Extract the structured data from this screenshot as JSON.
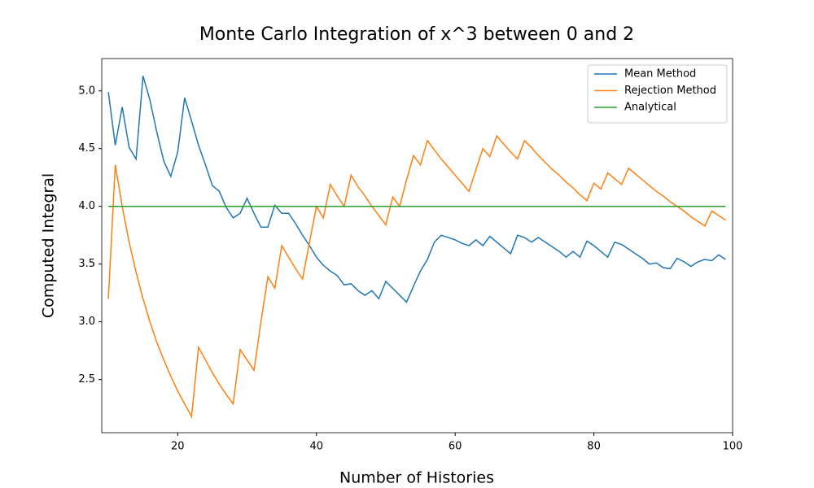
{
  "chart_data": {
    "type": "line",
    "title": "Monte Carlo Integration of x^3 between 0 and 2",
    "x_label": "Number of Histories",
    "y_label": "Computed Integral",
    "x": [
      10,
      11,
      12,
      13,
      14,
      15,
      16,
      17,
      18,
      19,
      20,
      21,
      22,
      23,
      24,
      25,
      26,
      27,
      28,
      29,
      30,
      31,
      32,
      33,
      34,
      35,
      36,
      37,
      38,
      39,
      40,
      41,
      42,
      43,
      44,
      45,
      46,
      47,
      48,
      49,
      50,
      51,
      52,
      53,
      54,
      55,
      56,
      57,
      58,
      59,
      60,
      61,
      62,
      63,
      64,
      65,
      66,
      67,
      68,
      69,
      70,
      71,
      72,
      73,
      74,
      75,
      76,
      77,
      78,
      79,
      80,
      81,
      82,
      83,
      84,
      85,
      86,
      87,
      88,
      89,
      90,
      91,
      92,
      93,
      94,
      95,
      96,
      97,
      98,
      99
    ],
    "series": [
      {
        "name": "Mean Method",
        "color": "#1f77b4",
        "values": [
          4.99,
          4.53,
          4.86,
          4.51,
          4.41,
          5.13,
          4.92,
          4.64,
          4.39,
          4.26,
          4.47,
          4.94,
          4.74,
          4.53,
          4.36,
          4.18,
          4.13,
          3.99,
          3.9,
          3.94,
          4.07,
          3.94,
          3.82,
          3.82,
          4.01,
          3.94,
          3.94,
          3.85,
          3.75,
          3.66,
          3.56,
          3.49,
          3.44,
          3.4,
          3.32,
          3.33,
          3.27,
          3.23,
          3.27,
          3.2,
          3.35,
          3.29,
          3.23,
          3.17,
          3.31,
          3.44,
          3.54,
          3.69,
          3.75,
          3.73,
          3.71,
          3.68,
          3.66,
          3.71,
          3.66,
          3.74,
          3.69,
          3.64,
          3.59,
          3.75,
          3.73,
          3.69,
          3.73,
          3.69,
          3.65,
          3.61,
          3.56,
          3.61,
          3.56,
          3.7,
          3.66,
          3.61,
          3.56,
          3.69,
          3.67,
          3.63,
          3.59,
          3.55,
          3.5,
          3.51,
          3.47,
          3.46,
          3.55,
          3.52,
          3.48,
          3.52,
          3.54,
          3.53,
          3.58,
          3.54
        ]
      },
      {
        "name": "Rejection Method",
        "color": "#ff7f0e",
        "values": [
          3.2,
          4.36,
          4.0,
          3.69,
          3.43,
          3.2,
          3.0,
          2.82,
          2.67,
          2.53,
          2.4,
          2.29,
          2.18,
          2.78,
          2.67,
          2.56,
          2.46,
          2.37,
          2.29,
          2.76,
          2.67,
          2.58,
          3.0,
          3.39,
          3.29,
          3.66,
          3.56,
          3.46,
          3.37,
          3.69,
          4.0,
          3.9,
          4.19,
          4.09,
          4.0,
          4.27,
          4.17,
          4.09,
          4.0,
          3.92,
          3.84,
          4.08,
          4.0,
          4.23,
          4.44,
          4.36,
          4.57,
          4.49,
          4.41,
          4.34,
          4.27,
          4.2,
          4.13,
          4.32,
          4.5,
          4.43,
          4.61,
          4.54,
          4.47,
          4.41,
          4.57,
          4.51,
          4.44,
          4.38,
          4.32,
          4.27,
          4.21,
          4.16,
          4.1,
          4.05,
          4.2,
          4.15,
          4.29,
          4.24,
          4.19,
          4.33,
          4.28,
          4.23,
          4.18,
          4.13,
          4.09,
          4.04,
          4.0,
          3.96,
          3.91,
          3.87,
          3.83,
          3.96,
          3.92,
          3.88
        ]
      },
      {
        "name": "Analytical",
        "color": "#2ca02c",
        "values": [
          4,
          4,
          4,
          4,
          4,
          4,
          4,
          4,
          4,
          4,
          4,
          4,
          4,
          4,
          4,
          4,
          4,
          4,
          4,
          4,
          4,
          4,
          4,
          4,
          4,
          4,
          4,
          4,
          4,
          4,
          4,
          4,
          4,
          4,
          4,
          4,
          4,
          4,
          4,
          4,
          4,
          4,
          4,
          4,
          4,
          4,
          4,
          4,
          4,
          4,
          4,
          4,
          4,
          4,
          4,
          4,
          4,
          4,
          4,
          4,
          4,
          4,
          4,
          4,
          4,
          4,
          4,
          4,
          4,
          4,
          4,
          4,
          4,
          4,
          4,
          4,
          4,
          4,
          4,
          4,
          4,
          4,
          4,
          4,
          4,
          4,
          4,
          4,
          4,
          4
        ]
      }
    ],
    "xlim": [
      9.05,
      100
    ],
    "ylim": [
      2.04,
      5.28
    ],
    "xticks": [
      20,
      40,
      60,
      80,
      100
    ],
    "yticks": [
      2.5,
      {
        "value": 3,
        "label": "3.0"
      },
      3.5,
      {
        "value": 4,
        "label": "4.0"
      },
      4.5,
      {
        "value": 5,
        "label": "5.0"
      }
    ],
    "legend": "upper right"
  }
}
